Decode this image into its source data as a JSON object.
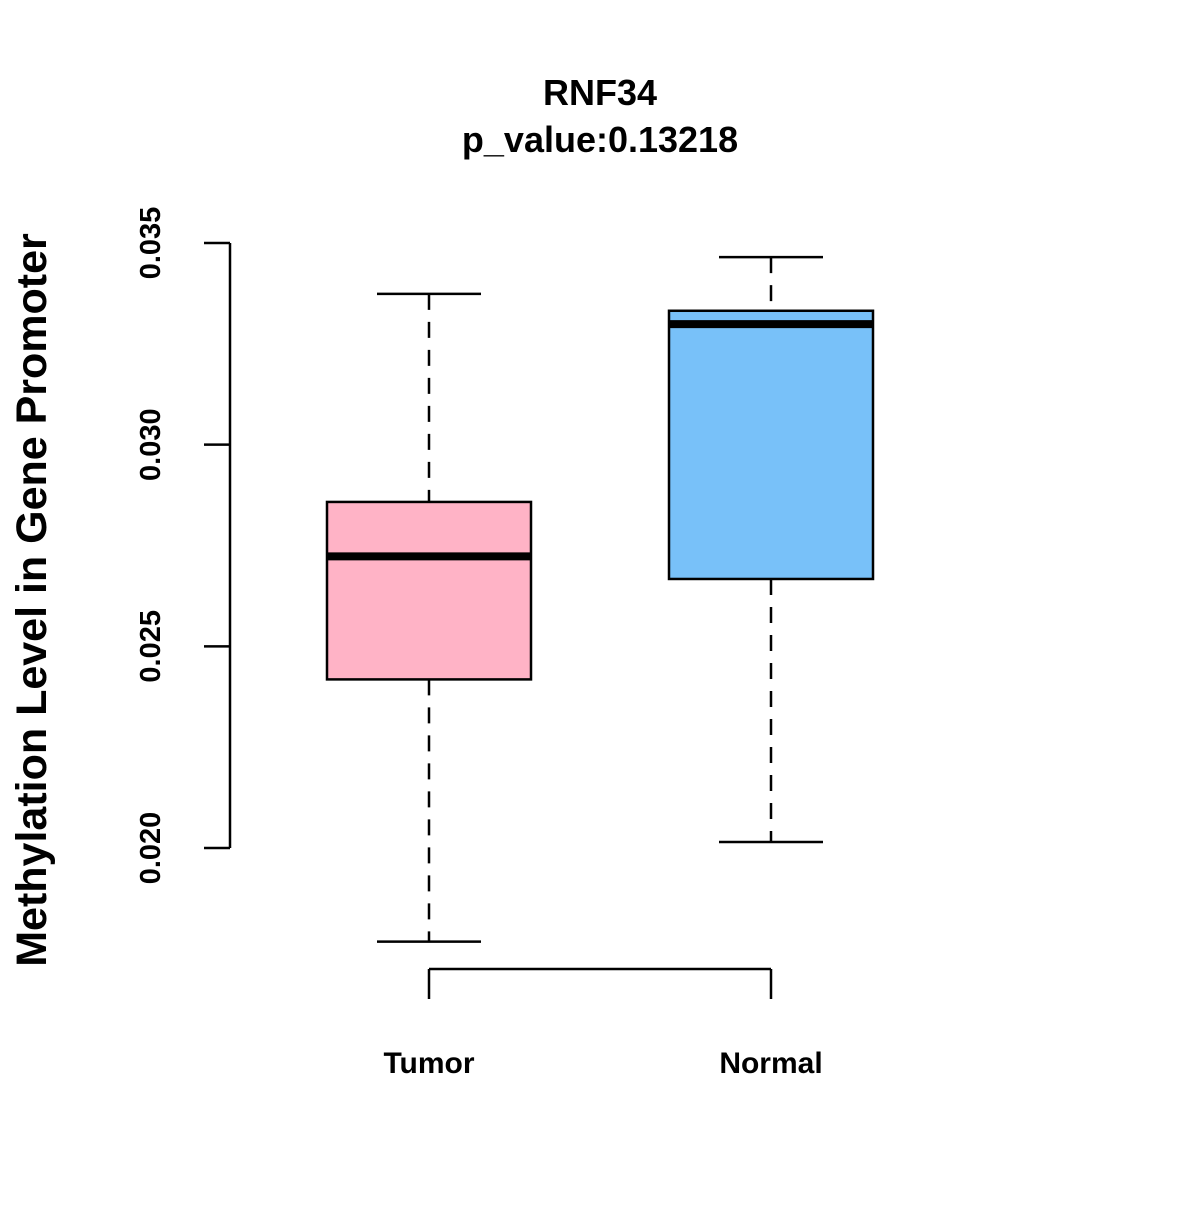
{
  "chart_data": {
    "type": "boxplot",
    "title": "RNF34",
    "subtitle": "p_value:0.13218",
    "xlabel": "",
    "ylabel": "Methylation Level in Gene Promoter",
    "ylim": [
      0.02,
      0.035
    ],
    "y_ticks": [
      0.02,
      0.025,
      0.03,
      0.035
    ],
    "y_tick_labels": [
      "0.020",
      "0.025",
      "0.030",
      "0.035"
    ],
    "categories": [
      "Tumor",
      "Normal"
    ],
    "boxes": [
      {
        "name": "Tumor",
        "color": "#FFB3C6",
        "whisker_low": 0.01768,
        "q1": 0.02418,
        "median": 0.02723,
        "q3": 0.02858,
        "whisker_high": 0.03374
      },
      {
        "name": "Normal",
        "color": "#78C1F9",
        "whisker_low": 0.02015,
        "q1": 0.02667,
        "median": 0.03299,
        "q3": 0.03332,
        "whisker_high": 0.03465
      }
    ],
    "grid": false,
    "legend": "none"
  }
}
